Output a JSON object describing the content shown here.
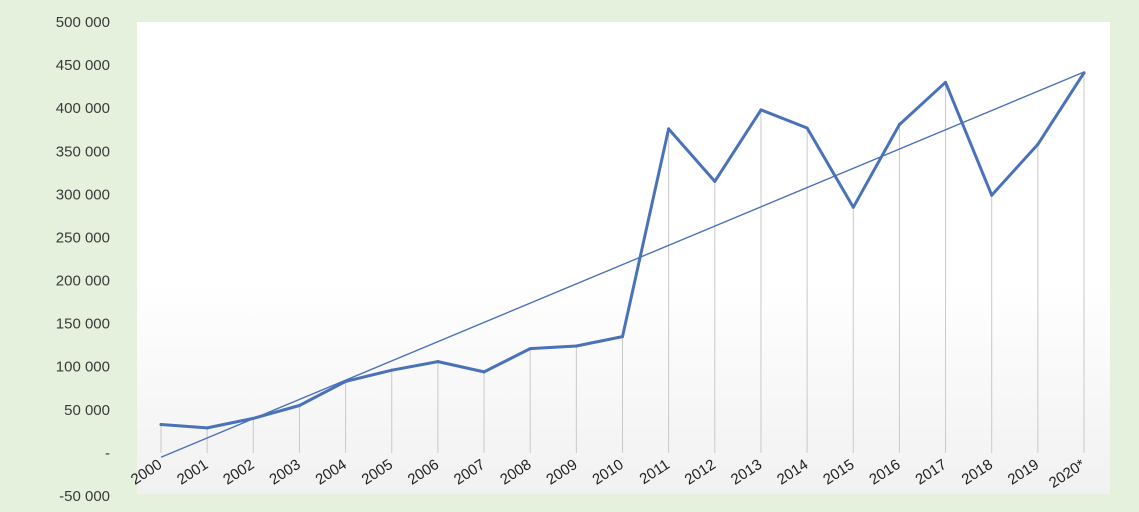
{
  "chart_data": {
    "type": "line",
    "title": "",
    "xlabel": "",
    "ylabel": "",
    "categories": [
      "2000",
      "2001",
      "2002",
      "2003",
      "2004",
      "2005",
      "2006",
      "2007",
      "2008",
      "2009",
      "2010",
      "2011",
      "2012",
      "2013",
      "2014",
      "2015",
      "2016",
      "2017",
      "2018",
      "2019",
      "2020*"
    ],
    "series": [
      {
        "values": [
          33000,
          29000,
          40000,
          55000,
          83000,
          96000,
          106000,
          94000,
          121000,
          124000,
          135000,
          376000,
          315000,
          398000,
          377000,
          285000,
          381000,
          430000,
          299000,
          358000,
          441000
        ],
        "color": "#4a72b8"
      }
    ],
    "trendline": {
      "type": "linear",
      "start": -5000,
      "end": 442000,
      "color": "#4a72b8"
    },
    "y_tick_values": [
      -50000,
      0,
      50000,
      100000,
      150000,
      200000,
      250000,
      300000,
      350000,
      400000,
      450000,
      500000
    ],
    "y_tick_labels": [
      "-50 000",
      "-",
      "50 000",
      "100 000",
      "150 000",
      "200 000",
      "250 000",
      "300 000",
      "350 000",
      "400 000",
      "450 000",
      "500 000"
    ],
    "ylim": [
      -50000,
      500000
    ],
    "grid": false,
    "drop_lines": true,
    "drop_line_color": "#c9c9c9",
    "background_color": "#e6f1dd",
    "plot_color": "#ffffff"
  }
}
